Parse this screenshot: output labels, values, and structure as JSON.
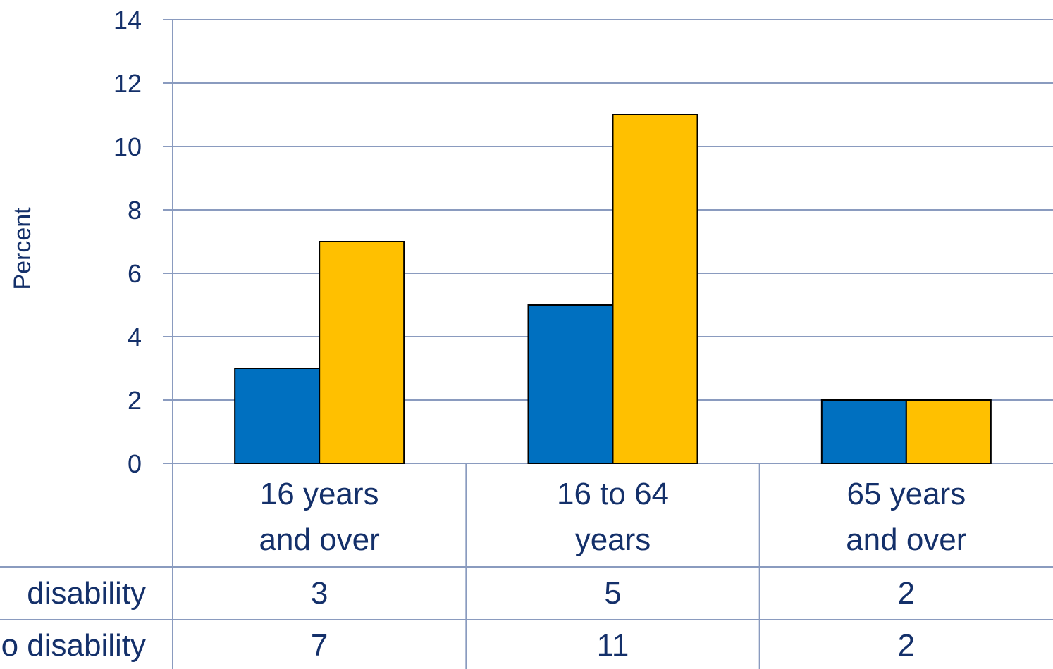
{
  "chart_data": {
    "type": "bar",
    "ylabel": "Percent",
    "xlabel": "",
    "ylim": [
      0,
      14
    ],
    "yticks": [
      0,
      2,
      4,
      6,
      8,
      10,
      12,
      14
    ],
    "grid": true,
    "categories": [
      [
        "16 years",
        "and over"
      ],
      [
        "16 to 64",
        "years"
      ],
      [
        "65 years",
        "and over"
      ]
    ],
    "series": [
      {
        "name": "disability",
        "values": [
          3,
          5,
          2
        ],
        "color": "#0070c0"
      },
      {
        "name": "no disability",
        "values": [
          7,
          11,
          2
        ],
        "color": "#ffc000"
      }
    ],
    "data_table": true
  }
}
